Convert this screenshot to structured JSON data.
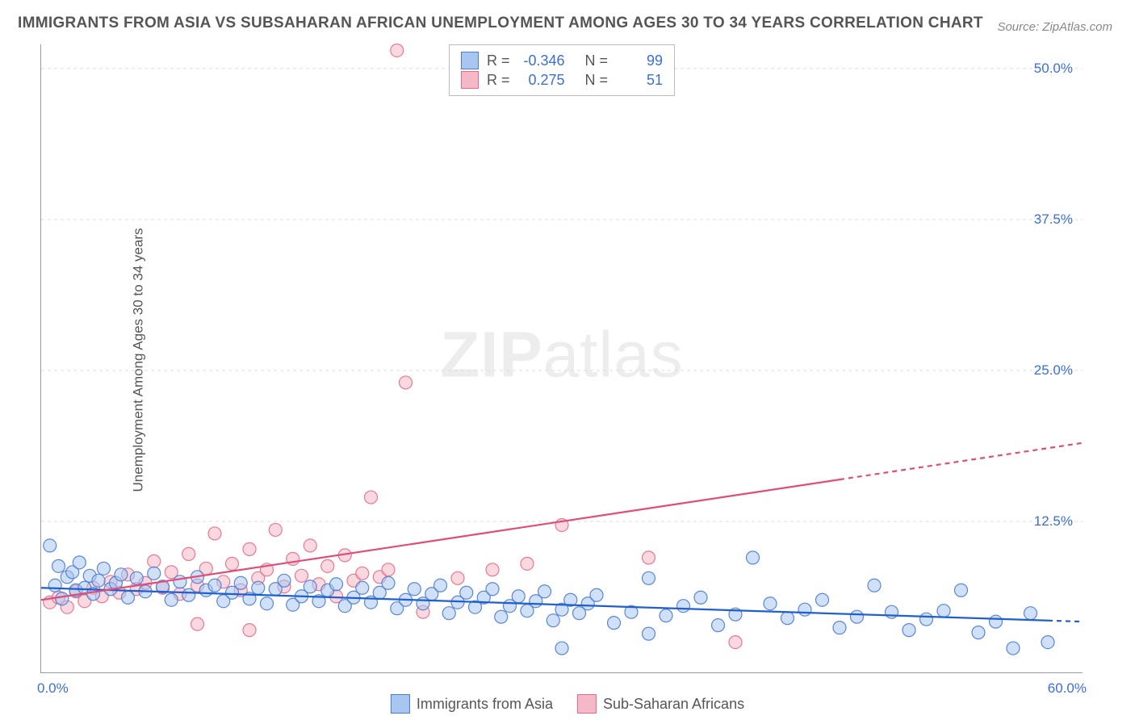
{
  "title": "IMMIGRANTS FROM ASIA VS SUBSAHARAN AFRICAN UNEMPLOYMENT AMONG AGES 30 TO 34 YEARS CORRELATION CHART",
  "source": "Source: ZipAtlas.com",
  "y_axis_label": "Unemployment Among Ages 30 to 34 years",
  "watermark": {
    "bold": "ZIP",
    "rest": "atlas"
  },
  "chart": {
    "type": "scatter-with-trend",
    "xlim": [
      0,
      60
    ],
    "ylim": [
      0,
      52
    ],
    "x_ticks": [
      {
        "v": 0,
        "label": "0.0%"
      },
      {
        "v": 60,
        "label": "60.0%"
      }
    ],
    "y_ticks": [
      {
        "v": 12.5,
        "label": "12.5%"
      },
      {
        "v": 25,
        "label": "25.0%"
      },
      {
        "v": 37.5,
        "label": "37.5%"
      },
      {
        "v": 50,
        "label": "50.0%"
      }
    ],
    "grid_color": "#dddddd",
    "background_color": "#ffffff",
    "axis_color": "#999999",
    "tick_label_color": "#3b6fd6",
    "marker_radius": 8,
    "marker_opacity": 0.55,
    "marker_stroke_opacity": 0.9,
    "series": {
      "asia": {
        "label": "Immigrants from Asia",
        "fill": "#a8c6f0",
        "stroke": "#4a7bd0",
        "trend_color": "#1f5fd0",
        "trend": {
          "x1": 0,
          "y1": 7.0,
          "x2": 60,
          "y2": 4.2,
          "solid_until": 58
        },
        "R": "-0.346",
        "N": "99",
        "points": [
          [
            0.5,
            10.5
          ],
          [
            0.8,
            7.2
          ],
          [
            1.0,
            8.8
          ],
          [
            1.2,
            6.1
          ],
          [
            1.5,
            7.9
          ],
          [
            1.8,
            8.3
          ],
          [
            2.0,
            6.8
          ],
          [
            2.2,
            9.1
          ],
          [
            2.5,
            7.0
          ],
          [
            2.8,
            8.0
          ],
          [
            3.0,
            6.5
          ],
          [
            3.3,
            7.6
          ],
          [
            3.6,
            8.6
          ],
          [
            4.0,
            6.9
          ],
          [
            4.3,
            7.4
          ],
          [
            4.6,
            8.1
          ],
          [
            5.0,
            6.2
          ],
          [
            5.5,
            7.8
          ],
          [
            6.0,
            6.7
          ],
          [
            6.5,
            8.2
          ],
          [
            7.0,
            7.1
          ],
          [
            7.5,
            6.0
          ],
          [
            8.0,
            7.5
          ],
          [
            8.5,
            6.4
          ],
          [
            9.0,
            7.9
          ],
          [
            9.5,
            6.8
          ],
          [
            10,
            7.2
          ],
          [
            10.5,
            5.9
          ],
          [
            11,
            6.6
          ],
          [
            11.5,
            7.4
          ],
          [
            12,
            6.1
          ],
          [
            12.5,
            7.0
          ],
          [
            13,
            5.7
          ],
          [
            13.5,
            6.9
          ],
          [
            14,
            7.6
          ],
          [
            14.5,
            5.6
          ],
          [
            15,
            6.3
          ],
          [
            15.5,
            7.1
          ],
          [
            16,
            5.9
          ],
          [
            16.5,
            6.8
          ],
          [
            17,
            7.3
          ],
          [
            17.5,
            5.5
          ],
          [
            18,
            6.2
          ],
          [
            18.5,
            7.0
          ],
          [
            19,
            5.8
          ],
          [
            19.5,
            6.6
          ],
          [
            20,
            7.4
          ],
          [
            20.5,
            5.3
          ],
          [
            21,
            6.0
          ],
          [
            21.5,
            6.9
          ],
          [
            22,
            5.7
          ],
          [
            22.5,
            6.5
          ],
          [
            23,
            7.2
          ],
          [
            23.5,
            4.9
          ],
          [
            24,
            5.8
          ],
          [
            24.5,
            6.6
          ],
          [
            25,
            5.4
          ],
          [
            25.5,
            6.2
          ],
          [
            26,
            6.9
          ],
          [
            26.5,
            4.6
          ],
          [
            27,
            5.5
          ],
          [
            27.5,
            6.3
          ],
          [
            28,
            5.1
          ],
          [
            28.5,
            5.9
          ],
          [
            29,
            6.7
          ],
          [
            29.5,
            4.3
          ],
          [
            30,
            5.2
          ],
          [
            30.5,
            6.0
          ],
          [
            31,
            4.9
          ],
          [
            31.5,
            5.7
          ],
          [
            32,
            6.4
          ],
          [
            33,
            4.1
          ],
          [
            34,
            5.0
          ],
          [
            35,
            7.8
          ],
          [
            36,
            4.7
          ],
          [
            37,
            5.5
          ],
          [
            38,
            6.2
          ],
          [
            39,
            3.9
          ],
          [
            40,
            4.8
          ],
          [
            41,
            9.5
          ],
          [
            42,
            5.7
          ],
          [
            43,
            4.5
          ],
          [
            44,
            5.2
          ],
          [
            45,
            6.0
          ],
          [
            46,
            3.7
          ],
          [
            47,
            4.6
          ],
          [
            48,
            7.2
          ],
          [
            49,
            5.0
          ],
          [
            50,
            3.5
          ],
          [
            51,
            4.4
          ],
          [
            52,
            5.1
          ],
          [
            53,
            6.8
          ],
          [
            54,
            3.3
          ],
          [
            55,
            4.2
          ],
          [
            56,
            2.0
          ],
          [
            57,
            4.9
          ],
          [
            58,
            2.5
          ],
          [
            30,
            2.0
          ],
          [
            35,
            3.2
          ]
        ]
      },
      "subsaharan": {
        "label": "Sub-Saharan Africans",
        "fill": "#f5b8c6",
        "stroke": "#e56b8a",
        "trend_color": "#e14d76",
        "trend": {
          "x1": 0,
          "y1": 6.0,
          "x2": 60,
          "y2": 19.0,
          "solid_until": 46
        },
        "R": "0.275",
        "N": "51",
        "points": [
          [
            0.5,
            5.8
          ],
          [
            1,
            6.2
          ],
          [
            1.5,
            5.4
          ],
          [
            2,
            6.7
          ],
          [
            2.5,
            5.9
          ],
          [
            3,
            7.0
          ],
          [
            3.5,
            6.3
          ],
          [
            4,
            7.5
          ],
          [
            4.5,
            6.6
          ],
          [
            5,
            8.1
          ],
          [
            5.5,
            6.9
          ],
          [
            6,
            7.4
          ],
          [
            6.5,
            9.2
          ],
          [
            7,
            7.0
          ],
          [
            7.5,
            8.3
          ],
          [
            8,
            6.5
          ],
          [
            8.5,
            9.8
          ],
          [
            9,
            7.2
          ],
          [
            9.5,
            8.6
          ],
          [
            10,
            11.5
          ],
          [
            10.5,
            7.5
          ],
          [
            11,
            9.0
          ],
          [
            11.5,
            6.8
          ],
          [
            12,
            10.2
          ],
          [
            12.5,
            7.8
          ],
          [
            13,
            8.5
          ],
          [
            13.5,
            11.8
          ],
          [
            14,
            7.1
          ],
          [
            14.5,
            9.4
          ],
          [
            15,
            8.0
          ],
          [
            15.5,
            10.5
          ],
          [
            16,
            7.3
          ],
          [
            16.5,
            8.8
          ],
          [
            17,
            6.3
          ],
          [
            17.5,
            9.7
          ],
          [
            18,
            7.6
          ],
          [
            18.5,
            8.2
          ],
          [
            19,
            14.5
          ],
          [
            19.5,
            7.9
          ],
          [
            20,
            8.5
          ],
          [
            20.5,
            51.5
          ],
          [
            21,
            24.0
          ],
          [
            22,
            5.0
          ],
          [
            24,
            7.8
          ],
          [
            26,
            8.5
          ],
          [
            28,
            9.0
          ],
          [
            30,
            12.2
          ],
          [
            35,
            9.5
          ],
          [
            40,
            2.5
          ],
          [
            9,
            4.0
          ],
          [
            12,
            3.5
          ]
        ]
      }
    }
  },
  "stats_box": {
    "rows": [
      {
        "swatch_fill": "#a8c6f0",
        "swatch_stroke": "#4a7bd0",
        "r_val": "-0.346",
        "n_val": "99"
      },
      {
        "swatch_fill": "#f5b8c6",
        "swatch_stroke": "#e56b8a",
        "r_val": "0.275",
        "n_val": "51"
      }
    ],
    "r_label": "R =",
    "n_label": "N ="
  },
  "bottom_legend": [
    {
      "fill": "#a8c6f0",
      "stroke": "#4a7bd0",
      "label": "Immigrants from Asia"
    },
    {
      "fill": "#f5b8c6",
      "stroke": "#e56b8a",
      "label": "Sub-Saharan Africans"
    }
  ]
}
